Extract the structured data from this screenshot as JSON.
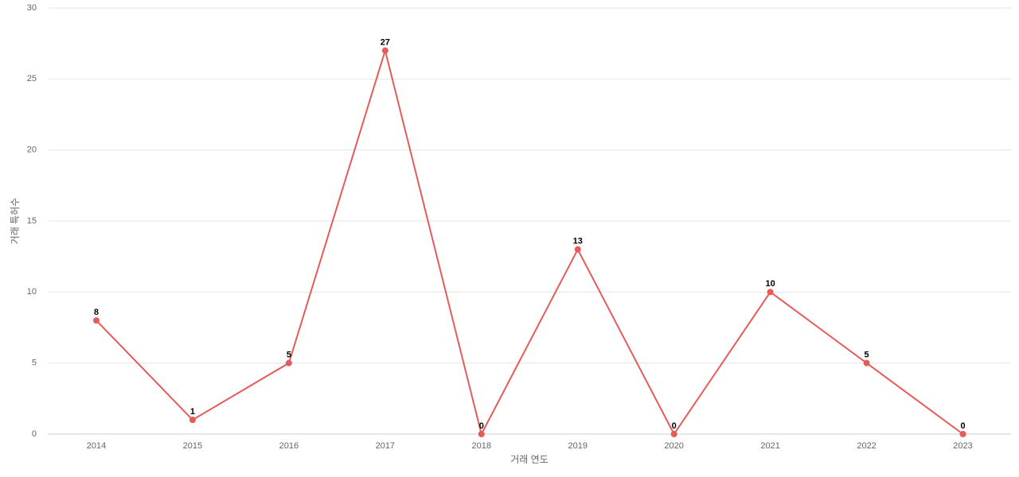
{
  "chart_data": {
    "type": "line",
    "x_label": "거래 연도",
    "y_label": "거래 특허수",
    "categories": [
      "2014",
      "2015",
      "2016",
      "2017",
      "2018",
      "2019",
      "2020",
      "2021",
      "2022",
      "2023"
    ],
    "series": [
      {
        "name": "거래 특허수",
        "color": "#e85a5a",
        "values": [
          8,
          1,
          5,
          27,
          0,
          13,
          0,
          10,
          5,
          0
        ]
      }
    ],
    "ylim": [
      0,
      30
    ],
    "yticks": [
      0,
      5,
      10,
      15,
      20,
      25,
      30
    ],
    "grid": true
  }
}
